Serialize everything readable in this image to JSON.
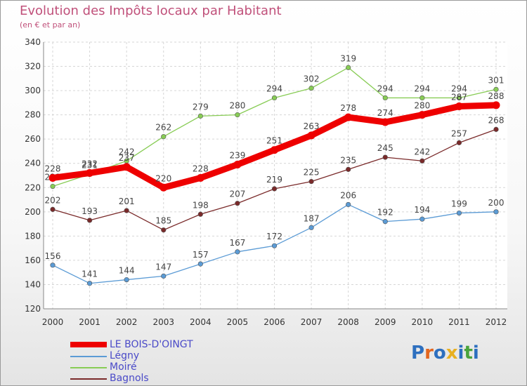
{
  "title": "Evolution des Impôts locaux par Habitant",
  "subtitle": "(en € et par an)",
  "logo_text": "Proxiti",
  "logo_colors": [
    "#2d6fbf",
    "#e2651e",
    "#2d6fbf",
    "#e8b021",
    "#2d6fbf",
    "#4aa33c",
    "#2d6fbf"
  ],
  "chart_data": {
    "type": "line",
    "title": "Evolution des Impôts locaux par Habitant",
    "subtitle": "(en € et par an)",
    "xlabel": "",
    "ylabel": "",
    "categories": [
      "2000",
      "2001",
      "2002",
      "2003",
      "2004",
      "2005",
      "2006",
      "2007",
      "2008",
      "2009",
      "2010",
      "2011",
      "2012"
    ],
    "ylim": [
      120,
      340
    ],
    "yticks": [
      120,
      140,
      160,
      180,
      200,
      220,
      240,
      260,
      280,
      300,
      320,
      340
    ],
    "grid": true,
    "legend_position": "bottom-left",
    "series": [
      {
        "name": "LE BOIS-D'OINGT",
        "color": "#ee0000",
        "values": [
          228,
          232,
          237,
          220,
          228,
          239,
          251,
          263,
          278,
          274,
          280,
          287,
          288
        ]
      },
      {
        "name": "Légny",
        "color": "#5b9bd5",
        "values": [
          156,
          141,
          144,
          147,
          157,
          167,
          172,
          187,
          206,
          192,
          194,
          199,
          200
        ]
      },
      {
        "name": "Moiré",
        "color": "#88cc55",
        "values": [
          221,
          231,
          242,
          262,
          279,
          280,
          294,
          302,
          319,
          294,
          294,
          294,
          301
        ]
      },
      {
        "name": "Bagnols",
        "color": "#7a2a2a",
        "values": [
          202,
          193,
          201,
          185,
          198,
          207,
          219,
          225,
          235,
          245,
          242,
          257,
          268
        ]
      }
    ]
  }
}
